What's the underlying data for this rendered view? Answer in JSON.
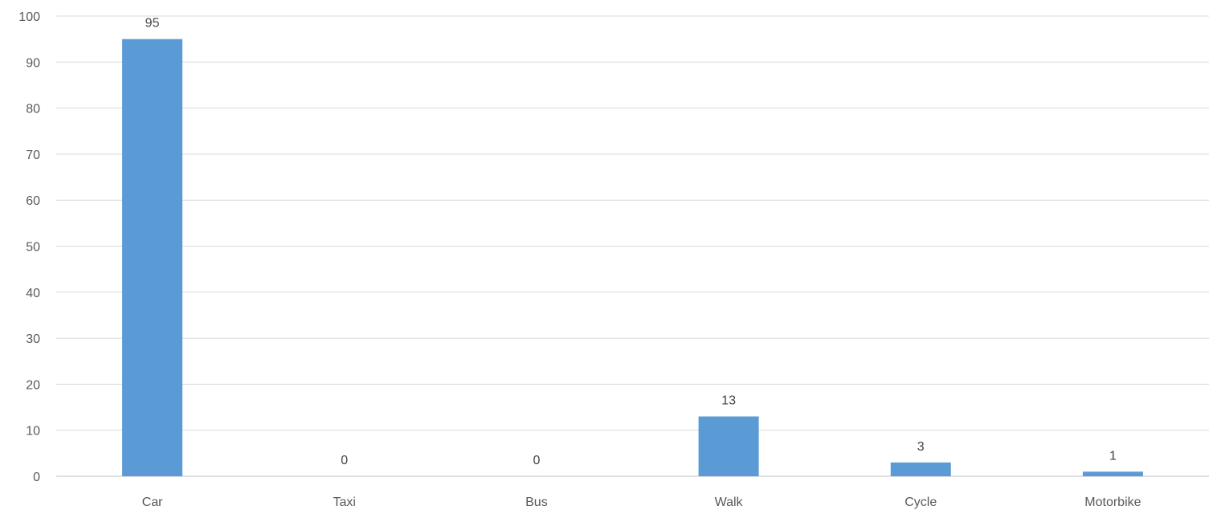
{
  "chart_data": {
    "type": "bar",
    "categories": [
      "Car",
      "Taxi",
      "Bus",
      "Walk",
      "Cycle",
      "Motorbike"
    ],
    "values": [
      95,
      0,
      0,
      13,
      3,
      1
    ],
    "data_labels": [
      "95",
      "0",
      "0",
      "13",
      "3",
      "1"
    ],
    "title": "",
    "xlabel": "",
    "ylabel": "",
    "ylim": [
      0,
      100
    ],
    "yticks": [
      0,
      10,
      20,
      30,
      40,
      50,
      60,
      70,
      80,
      90,
      100
    ],
    "ytick_labels": [
      "0",
      "10",
      "20",
      "30",
      "40",
      "50",
      "60",
      "70",
      "80",
      "90",
      "100"
    ],
    "grid": true,
    "legend": "none",
    "bar_color": "#5b9bd5"
  }
}
